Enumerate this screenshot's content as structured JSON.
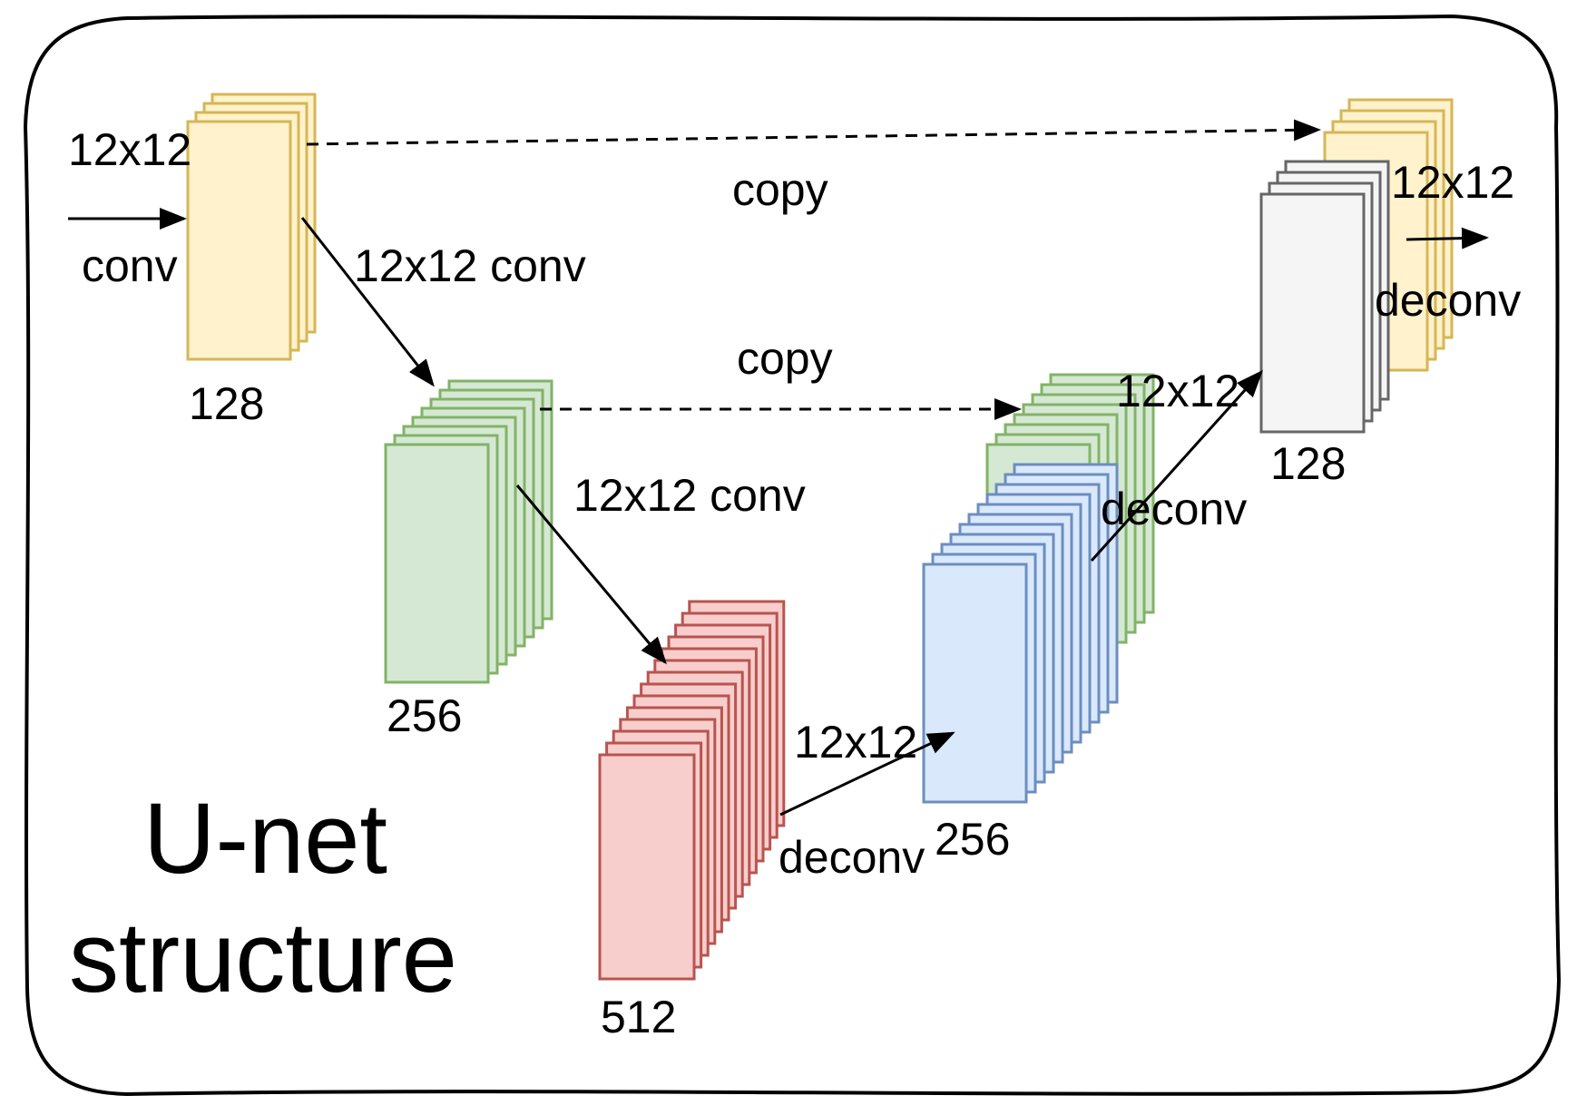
{
  "diagram": {
    "title_line1": "U-net",
    "title_line2": "structure"
  },
  "colors": {
    "yellow": {
      "fill": "#fff2cc",
      "stroke": "#d6b656"
    },
    "green": {
      "fill": "#d5e8d4",
      "stroke": "#82b366"
    },
    "red": {
      "fill": "#f8cecc",
      "stroke": "#b85450"
    },
    "blue": {
      "fill": "#dae8fc",
      "stroke": "#6c8ebf"
    },
    "gray": {
      "fill": "#f5f5f5",
      "stroke": "#666666"
    }
  },
  "blocks": [
    {
      "name": "enc-128-block",
      "color": "yellow",
      "label": "128"
    },
    {
      "name": "enc-256-block",
      "color": "green",
      "label": "256"
    },
    {
      "name": "bottleneck-512-block",
      "color": "red",
      "label": "512"
    },
    {
      "name": "dec-256-skip-block",
      "color": "green",
      "label": ""
    },
    {
      "name": "dec-256-block",
      "color": "blue",
      "label": "256"
    },
    {
      "name": "dec-128-skip-block",
      "color": "yellow",
      "label": ""
    },
    {
      "name": "dec-128-block",
      "color": "gray",
      "label": "128"
    }
  ],
  "edges": {
    "input_kernel": "12x12",
    "input_op": "conv",
    "down1": "12x12 conv",
    "down2": "12x12 conv",
    "copy_top": "copy",
    "copy_mid": "copy",
    "up1_kernel": "12x12",
    "up1_op": "deconv",
    "up2_kernel": "12x12",
    "up2_op": "deconv",
    "out_kernel": "12x12",
    "out_op": "deconv"
  }
}
